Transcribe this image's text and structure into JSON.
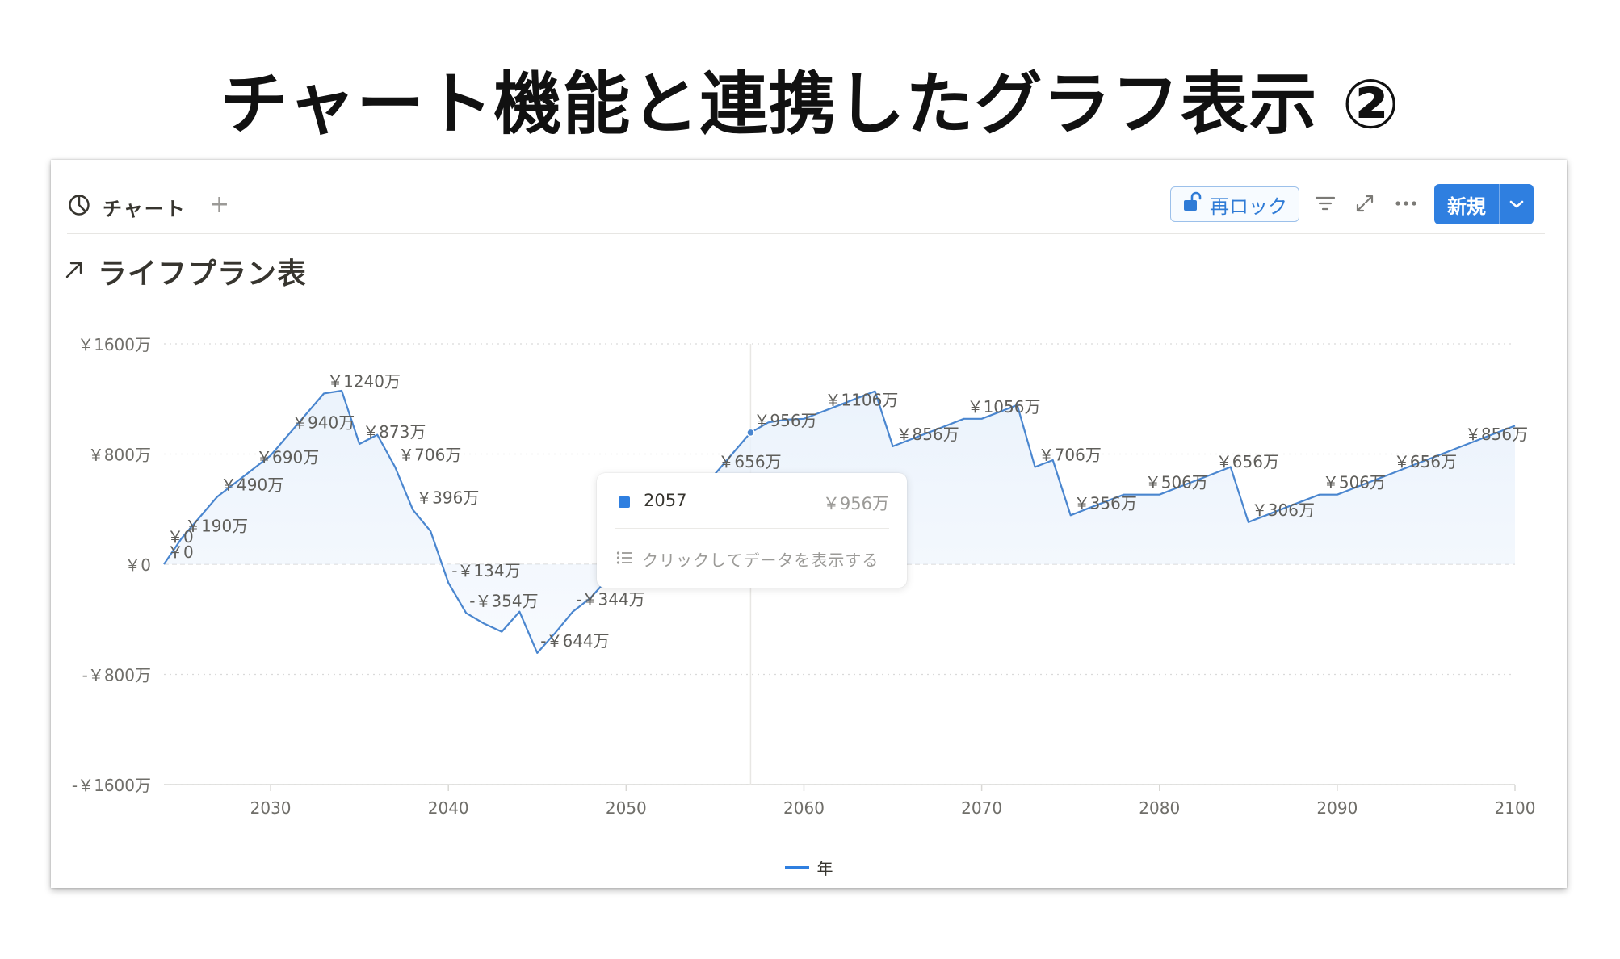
{
  "slide": {
    "title": "チャート機能と連携したグラフ表示 ②"
  },
  "toolbar": {
    "view_tab_label": "チャート",
    "add_view_label": "+",
    "relock_label": "再ロック",
    "new_label": "新規"
  },
  "icons": {
    "view_tab": "pie-chart-icon",
    "relock": "unlock-icon",
    "filter": "filter-icon",
    "expand": "expand-icon",
    "more": "more-icon",
    "new_caret": "chevron-down-icon",
    "title": "arrow-up-right-icon",
    "tooltip_hint": "list-icon"
  },
  "chart_title": "ライフプラン表",
  "tooltip": {
    "year": "2057",
    "value": "￥956万",
    "hint": "クリックしてデータを表示する"
  },
  "colors": {
    "accent": "#2f7fe0",
    "line": "#4a86cf",
    "area": "#eaf2fc",
    "grid": "#dadada"
  },
  "chart_data": {
    "type": "area",
    "title": "ライフプラン表",
    "xlabel": "",
    "ylabel": "",
    "xlim": [
      2024,
      2100
    ],
    "ylim": [
      -1600,
      1600
    ],
    "grid": true,
    "legend_position": "bottom",
    "y_ticks": [
      1600,
      800,
      0,
      -800,
      -1600
    ],
    "y_tick_labels": [
      "￥1600万",
      "￥800万",
      "￥0",
      "-￥800万",
      "-￥1600万"
    ],
    "x_ticks": [
      2030,
      2040,
      2050,
      2060,
      2070,
      2080,
      2090,
      2100
    ],
    "x_tick_labels": [
      "2030",
      "2040",
      "2050",
      "2060",
      "2070",
      "2080",
      "2090",
      "2100"
    ],
    "series": [
      {
        "name": "年",
        "x": [
          2024,
          2025,
          2026,
          2027,
          2028,
          2029,
          2030,
          2031,
          2032,
          2033,
          2034,
          2035,
          2036,
          2037,
          2038,
          2039,
          2040,
          2041,
          2042,
          2043,
          2044,
          2045,
          2046,
          2047,
          2048,
          2049,
          2050,
          2051,
          2052,
          2053,
          2054,
          2055,
          2056,
          2057,
          2058,
          2059,
          2060,
          2061,
          2062,
          2063,
          2064,
          2065,
          2066,
          2067,
          2068,
          2069,
          2070,
          2071,
          2072,
          2073,
          2074,
          2075,
          2076,
          2077,
          2078,
          2079,
          2080,
          2081,
          2082,
          2083,
          2084,
          2085,
          2086,
          2087,
          2088,
          2089,
          2090,
          2091,
          2092,
          2093,
          2094,
          2095,
          2096,
          2097,
          2098,
          2099,
          2100
        ],
        "values": [
          0,
          190,
          340,
          490,
          590,
          690,
          790,
          940,
          1090,
          1240,
          1260,
          873,
          940,
          706,
          396,
          240,
          -134,
          -354,
          -430,
          -490,
          -344,
          -644,
          -500,
          -344,
          -244,
          -100,
          0,
          150,
          300,
          450,
          506,
          656,
          806,
          956,
          1030,
          1050,
          1056,
          1106,
          1156,
          1206,
          1256,
          856,
          906,
          956,
          1006,
          1056,
          1056,
          1106,
          1156,
          706,
          756,
          356,
          406,
          456,
          506,
          506,
          506,
          556,
          606,
          656,
          706,
          306,
          356,
          406,
          456,
          506,
          506,
          556,
          606,
          656,
          706,
          756,
          806,
          856,
          906,
          956,
          1006
        ]
      }
    ],
    "data_labels": [
      {
        "x": 2024,
        "y": 0,
        "text": "￥0"
      },
      {
        "x": 2024,
        "y": 110,
        "text": "￥0"
      },
      {
        "x": 2025,
        "y": 190,
        "text": "￥190万"
      },
      {
        "x": 2027,
        "y": 490,
        "text": "￥490万"
      },
      {
        "x": 2029,
        "y": 690,
        "text": "￥690万"
      },
      {
        "x": 2031,
        "y": 940,
        "text": "￥940万"
      },
      {
        "x": 2033,
        "y": 1240,
        "text": "￥1240万"
      },
      {
        "x": 2035,
        "y": 873,
        "text": "￥873万"
      },
      {
        "x": 2037,
        "y": 706,
        "text": "￥706万"
      },
      {
        "x": 2038,
        "y": 396,
        "text": "￥396万"
      },
      {
        "x": 2040,
        "y": -134,
        "text": "-￥134万"
      },
      {
        "x": 2041,
        "y": -354,
        "text": "-￥354万"
      },
      {
        "x": 2045,
        "y": -644,
        "text": "-￥644万"
      },
      {
        "x": 2047,
        "y": -344,
        "text": "-￥344万"
      },
      {
        "x": 2055,
        "y": 656,
        "text": "￥656万"
      },
      {
        "x": 2057,
        "y": 956,
        "text": "￥956万"
      },
      {
        "x": 2061,
        "y": 1106,
        "text": "￥1106万"
      },
      {
        "x": 2065,
        "y": 856,
        "text": "￥856万"
      },
      {
        "x": 2069,
        "y": 1056,
        "text": "￥1056万"
      },
      {
        "x": 2073,
        "y": 706,
        "text": "￥706万"
      },
      {
        "x": 2075,
        "y": 356,
        "text": "￥356万"
      },
      {
        "x": 2079,
        "y": 506,
        "text": "￥506万"
      },
      {
        "x": 2083,
        "y": 656,
        "text": "￥656万"
      },
      {
        "x": 2085,
        "y": 306,
        "text": "￥306万"
      },
      {
        "x": 2089,
        "y": 506,
        "text": "￥506万"
      },
      {
        "x": 2093,
        "y": 656,
        "text": "￥656万"
      },
      {
        "x": 2097,
        "y": 856,
        "text": "￥856万"
      }
    ],
    "hover": {
      "x": 2057,
      "y": 956
    }
  }
}
